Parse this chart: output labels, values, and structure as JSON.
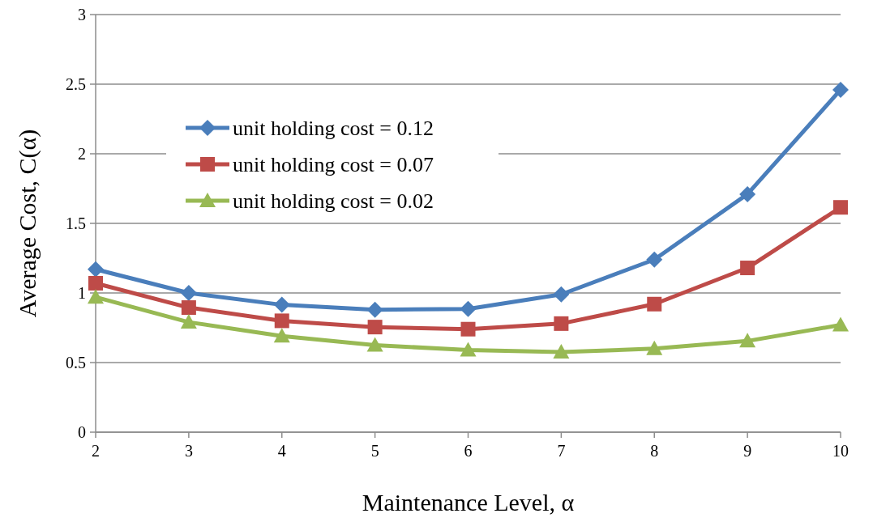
{
  "chart_data": {
    "type": "line",
    "xlabel": "Maintenance Level, α",
    "ylabel": "Average Cost, C(α)",
    "x": [
      2,
      3,
      4,
      5,
      6,
      7,
      8,
      9,
      10
    ],
    "series": [
      {
        "name": "unit holding cost = 0.12",
        "color": "#4a7ebb",
        "marker": "diamond",
        "values": [
          1.17,
          1.0,
          0.915,
          0.88,
          0.885,
          0.99,
          1.24,
          1.71,
          2.46
        ]
      },
      {
        "name": "unit holding cost = 0.07",
        "color": "#be4b48",
        "marker": "square",
        "values": [
          1.07,
          0.895,
          0.8,
          0.755,
          0.74,
          0.78,
          0.92,
          1.18,
          1.615
        ]
      },
      {
        "name": "unit holding cost = 0.02",
        "color": "#98b954",
        "marker": "triangle",
        "values": [
          0.97,
          0.79,
          0.69,
          0.625,
          0.59,
          0.575,
          0.6,
          0.655,
          0.77
        ]
      }
    ],
    "xlim": [
      2,
      10
    ],
    "xticks": [
      2,
      3,
      4,
      5,
      6,
      7,
      8,
      9,
      10
    ],
    "ylim": [
      0,
      3
    ],
    "yticks": [
      0,
      {
        "value": 0.5,
        "label": "0.5"
      },
      1,
      {
        "value": 1.5,
        "label": "1.5"
      },
      2,
      {
        "value": 2.5,
        "label": "2.5"
      },
      3
    ],
    "grid": "y",
    "legend": "top left",
    "line_style": "solid"
  }
}
